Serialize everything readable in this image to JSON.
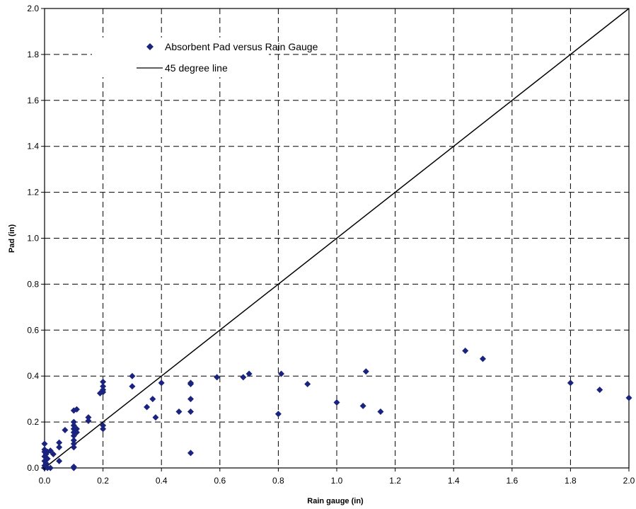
{
  "chart_data": {
    "type": "scatter",
    "title": "",
    "xlabel": "Rain gauge (in)",
    "ylabel": "Pad (in)",
    "xlim": [
      0,
      2.0
    ],
    "ylim": [
      0,
      2.0
    ],
    "x_ticks": [
      "0.0",
      "0.2",
      "0.4",
      "0.6",
      "0.8",
      "1.0",
      "1.2",
      "1.4",
      "1.6",
      "1.8",
      "2.0"
    ],
    "y_ticks": [
      "0.0",
      "0.2",
      "0.4",
      "0.6",
      "0.8",
      "1.0",
      "1.2",
      "1.4",
      "1.6",
      "1.8",
      "2.0"
    ],
    "grid": true,
    "grid_style": "dashed",
    "legend_position": "top-left",
    "series": [
      {
        "name": "Absorbent Pad versus Rain Gauge",
        "kind": "scatter",
        "marker": "diamond",
        "color": "#1a237e",
        "points": [
          [
            0.0,
            0.105
          ],
          [
            0.0,
            0.08
          ],
          [
            0.0,
            0.07
          ],
          [
            0.0,
            0.05
          ],
          [
            0.0,
            0.03
          ],
          [
            0.0,
            0.01
          ],
          [
            0.0,
            0.0
          ],
          [
            0.005,
            0.06
          ],
          [
            0.005,
            0.02
          ],
          [
            0.01,
            0.07
          ],
          [
            0.01,
            0.0
          ],
          [
            0.01,
            0.04
          ],
          [
            0.02,
            0.0
          ],
          [
            0.02,
            0.075
          ],
          [
            0.03,
            0.06
          ],
          [
            0.05,
            0.11
          ],
          [
            0.05,
            0.09
          ],
          [
            0.05,
            0.03
          ],
          [
            0.07,
            0.165
          ],
          [
            0.1,
            0.25
          ],
          [
            0.1,
            0.2
          ],
          [
            0.1,
            0.185
          ],
          [
            0.1,
            0.17
          ],
          [
            0.1,
            0.155
          ],
          [
            0.1,
            0.14
          ],
          [
            0.1,
            0.12
          ],
          [
            0.1,
            0.105
          ],
          [
            0.1,
            0.09
          ],
          [
            0.1,
            0.005
          ],
          [
            0.1,
            0.0
          ],
          [
            0.11,
            0.255
          ],
          [
            0.11,
            0.17
          ],
          [
            0.11,
            0.155
          ],
          [
            0.15,
            0.22
          ],
          [
            0.15,
            0.205
          ],
          [
            0.19,
            0.325
          ],
          [
            0.2,
            0.375
          ],
          [
            0.2,
            0.355
          ],
          [
            0.2,
            0.34
          ],
          [
            0.2,
            0.33
          ],
          [
            0.2,
            0.185
          ],
          [
            0.2,
            0.17
          ],
          [
            0.3,
            0.4
          ],
          [
            0.3,
            0.355
          ],
          [
            0.35,
            0.265
          ],
          [
            0.37,
            0.3
          ],
          [
            0.38,
            0.22
          ],
          [
            0.4,
            0.37
          ],
          [
            0.46,
            0.245
          ],
          [
            0.5,
            0.37
          ],
          [
            0.5,
            0.365
          ],
          [
            0.5,
            0.3
          ],
          [
            0.5,
            0.245
          ],
          [
            0.5,
            0.065
          ],
          [
            0.59,
            0.395
          ],
          [
            0.68,
            0.395
          ],
          [
            0.7,
            0.41
          ],
          [
            0.8,
            0.235
          ],
          [
            0.81,
            0.41
          ],
          [
            0.9,
            0.365
          ],
          [
            1.0,
            0.285
          ],
          [
            1.09,
            0.27
          ],
          [
            1.1,
            0.42
          ],
          [
            1.15,
            0.245
          ],
          [
            1.44,
            0.51
          ],
          [
            1.5,
            0.475
          ],
          [
            1.8,
            0.37
          ],
          [
            1.9,
            0.34
          ],
          [
            2.0,
            0.305
          ]
        ]
      },
      {
        "name": "45 degree line",
        "kind": "line",
        "color": "#000000",
        "points": [
          [
            0,
            0
          ],
          [
            2.0,
            2.0
          ]
        ]
      }
    ]
  }
}
